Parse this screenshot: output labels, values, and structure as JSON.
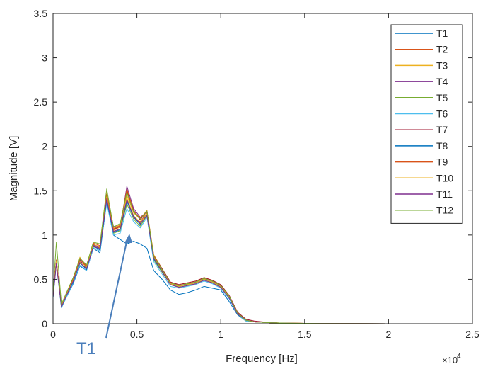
{
  "chart_data": {
    "type": "line",
    "title": "",
    "xlabel": "Frequency [Hz]",
    "ylabel": "Magnitude [V]",
    "x_exponent_label": "×10",
    "x_exponent_power": "4",
    "xlim": [
      0,
      25000
    ],
    "ylim": [
      0,
      3.5
    ],
    "x_ticks": [
      0,
      5000,
      10000,
      15000,
      20000,
      25000
    ],
    "x_tick_labels": [
      "0",
      "0.5",
      "1",
      "1.5",
      "2",
      "2.5"
    ],
    "y_ticks": [
      0,
      0.5,
      1,
      1.5,
      2,
      2.5,
      3,
      3.5
    ],
    "y_tick_labels": [
      "0",
      "0.5",
      "1",
      "1.5",
      "2",
      "2.5",
      "3",
      "3.5"
    ],
    "grid": false,
    "legend_position": "top-right",
    "annotation": {
      "text": "T1",
      "color": "#4a7ebb",
      "points_to": [
        4500,
        0.93
      ]
    },
    "x": [
      0,
      200,
      500,
      800,
      1200,
      1600,
      2000,
      2400,
      2800,
      3200,
      3600,
      4000,
      4400,
      4800,
      5200,
      5600,
      6000,
      6500,
      7000,
      7500,
      8000,
      8500,
      9000,
      9500,
      10000,
      10500,
      11000,
      11500,
      12000,
      13000,
      14000,
      15000,
      16000,
      18000,
      20000,
      22000
    ],
    "series": [
      {
        "name": "T1",
        "color": "#0072bd",
        "values": [
          0.3,
          0.7,
          0.18,
          0.3,
          0.45,
          0.65,
          0.6,
          0.85,
          0.8,
          1.38,
          1.0,
          0.95,
          0.9,
          0.93,
          0.9,
          0.85,
          0.6,
          0.5,
          0.38,
          0.33,
          0.35,
          0.38,
          0.42,
          0.4,
          0.38,
          0.25,
          0.1,
          0.03,
          0.02,
          0.01,
          0.005,
          0.003,
          0.002,
          0.001,
          0.0,
          0.0
        ]
      },
      {
        "name": "T2",
        "color": "#d95319",
        "values": [
          0.32,
          0.72,
          0.2,
          0.33,
          0.5,
          0.7,
          0.65,
          0.9,
          0.85,
          1.45,
          1.05,
          1.1,
          1.4,
          1.2,
          1.15,
          1.25,
          0.75,
          0.6,
          0.45,
          0.42,
          0.44,
          0.46,
          0.5,
          0.47,
          0.42,
          0.3,
          0.12,
          0.04,
          0.02,
          0.01,
          0.006,
          0.004,
          0.002,
          0.001,
          0.0,
          0.0
        ]
      },
      {
        "name": "T3",
        "color": "#edb120",
        "values": [
          0.31,
          0.68,
          0.19,
          0.32,
          0.48,
          0.75,
          0.62,
          0.92,
          0.9,
          1.5,
          1.08,
          1.12,
          1.45,
          1.25,
          1.18,
          1.28,
          0.78,
          0.62,
          0.47,
          0.44,
          0.46,
          0.48,
          0.52,
          0.49,
          0.43,
          0.31,
          0.13,
          0.04,
          0.02,
          0.01,
          0.006,
          0.004,
          0.002,
          0.001,
          0.0,
          0.0
        ]
      },
      {
        "name": "T4",
        "color": "#7e2f8e",
        "values": [
          0.3,
          0.71,
          0.2,
          0.34,
          0.52,
          0.72,
          0.66,
          0.88,
          0.86,
          1.42,
          1.1,
          1.08,
          1.55,
          1.3,
          1.2,
          1.26,
          0.76,
          0.61,
          0.46,
          0.43,
          0.45,
          0.47,
          0.51,
          0.48,
          0.42,
          0.3,
          0.12,
          0.04,
          0.02,
          0.01,
          0.006,
          0.004,
          0.002,
          0.001,
          0.0,
          0.0
        ]
      },
      {
        "name": "T5",
        "color": "#77ac30",
        "values": [
          0.33,
          0.69,
          0.21,
          0.31,
          0.49,
          0.68,
          0.63,
          0.87,
          0.84,
          1.4,
          1.02,
          1.05,
          1.35,
          1.18,
          1.1,
          1.22,
          0.72,
          0.58,
          0.44,
          0.41,
          0.43,
          0.45,
          0.49,
          0.46,
          0.41,
          0.29,
          0.11,
          0.03,
          0.02,
          0.01,
          0.005,
          0.003,
          0.002,
          0.001,
          0.0,
          0.0
        ]
      },
      {
        "name": "T6",
        "color": "#4dbeee",
        "values": [
          0.29,
          0.67,
          0.18,
          0.3,
          0.46,
          0.66,
          0.6,
          0.86,
          0.82,
          1.36,
          1.0,
          1.02,
          1.3,
          1.15,
          1.08,
          1.2,
          0.7,
          0.56,
          0.42,
          0.4,
          0.42,
          0.44,
          0.48,
          0.45,
          0.4,
          0.28,
          0.11,
          0.03,
          0.02,
          0.01,
          0.005,
          0.003,
          0.002,
          0.001,
          0.0,
          0.0
        ]
      },
      {
        "name": "T7",
        "color": "#a2142f",
        "values": [
          0.31,
          0.7,
          0.2,
          0.33,
          0.5,
          0.71,
          0.64,
          0.89,
          0.87,
          1.44,
          1.06,
          1.1,
          1.5,
          1.28,
          1.17,
          1.27,
          0.77,
          0.62,
          0.47,
          0.44,
          0.46,
          0.48,
          0.52,
          0.49,
          0.44,
          0.32,
          0.13,
          0.05,
          0.03,
          0.01,
          0.006,
          0.004,
          0.002,
          0.001,
          0.0,
          0.0
        ]
      },
      {
        "name": "T8",
        "color": "#0072bd",
        "values": [
          0.3,
          0.69,
          0.19,
          0.32,
          0.47,
          0.69,
          0.61,
          0.88,
          0.83,
          1.39,
          1.03,
          1.06,
          1.38,
          1.2,
          1.12,
          1.23,
          0.73,
          0.59,
          0.44,
          0.42,
          0.44,
          0.46,
          0.5,
          0.47,
          0.42,
          0.3,
          0.12,
          0.04,
          0.02,
          0.01,
          0.005,
          0.003,
          0.002,
          0.001,
          0.0,
          0.0
        ]
      },
      {
        "name": "T9",
        "color": "#d95319",
        "values": [
          0.32,
          0.71,
          0.21,
          0.34,
          0.51,
          0.73,
          0.65,
          0.91,
          0.88,
          1.46,
          1.07,
          1.11,
          1.52,
          1.27,
          1.19,
          1.27,
          0.77,
          0.61,
          0.46,
          0.43,
          0.45,
          0.47,
          0.51,
          0.48,
          0.43,
          0.31,
          0.12,
          0.04,
          0.02,
          0.01,
          0.006,
          0.004,
          0.002,
          0.001,
          0.0,
          0.0
        ]
      },
      {
        "name": "T10",
        "color": "#edb120",
        "values": [
          0.31,
          0.7,
          0.2,
          0.33,
          0.49,
          0.7,
          0.64,
          0.9,
          0.86,
          1.43,
          1.05,
          1.09,
          1.42,
          1.22,
          1.14,
          1.24,
          0.75,
          0.6,
          0.45,
          0.42,
          0.44,
          0.46,
          0.5,
          0.47,
          0.42,
          0.3,
          0.12,
          0.04,
          0.02,
          0.01,
          0.006,
          0.004,
          0.002,
          0.001,
          0.0,
          0.0
        ]
      },
      {
        "name": "T11",
        "color": "#7e2f8e",
        "values": [
          0.3,
          0.68,
          0.19,
          0.32,
          0.48,
          0.69,
          0.62,
          0.87,
          0.85,
          1.41,
          1.04,
          1.07,
          1.4,
          1.21,
          1.13,
          1.22,
          0.74,
          0.59,
          0.44,
          0.41,
          0.43,
          0.45,
          0.49,
          0.46,
          0.41,
          0.29,
          0.11,
          0.04,
          0.02,
          0.01,
          0.005,
          0.003,
          0.002,
          0.001,
          0.0,
          0.0
        ]
      },
      {
        "name": "T12",
        "color": "#77ac30",
        "values": [
          0.34,
          0.92,
          0.22,
          0.35,
          0.52,
          0.74,
          0.66,
          0.92,
          0.9,
          1.52,
          1.09,
          1.13,
          1.48,
          1.26,
          1.18,
          1.27,
          0.76,
          0.61,
          0.46,
          0.43,
          0.45,
          0.47,
          0.51,
          0.48,
          0.43,
          0.31,
          0.12,
          0.04,
          0.02,
          0.01,
          0.006,
          0.004,
          0.002,
          0.001,
          0.0,
          0.0
        ]
      }
    ]
  }
}
